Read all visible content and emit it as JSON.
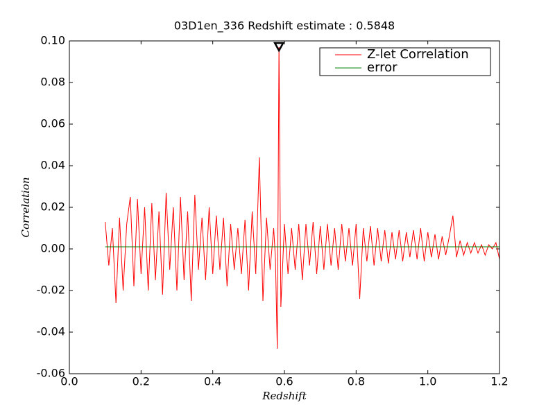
{
  "chart_data": {
    "type": "line",
    "title": "03D1en_336 Redshift estimate : 0.5848",
    "x_label": "Redshift",
    "y_label": "Correlation",
    "xlim": [
      0,
      1.2
    ],
    "ylim": [
      -0.06,
      0.1
    ],
    "xticks": [
      {
        "value": 0,
        "label": "0.0"
      },
      0.2,
      0.4,
      0.6,
      0.8,
      {
        "value": 1,
        "label": "1.0"
      },
      1.2
    ],
    "yticks": [
      -0.06,
      -0.04,
      -0.02,
      {
        "value": 0,
        "label": "0.00"
      },
      0.02,
      0.04,
      0.06,
      0.08,
      {
        "value": 0.1,
        "label": "0.10"
      }
    ],
    "legend": "upper right",
    "marker": {
      "x": 0.5848,
      "y": 0.097
    },
    "series": [
      {
        "name": "Z-let Correlation",
        "color": "#ff0000",
        "x": [
          0.1,
          0.11,
          0.12,
          0.13,
          0.14,
          0.15,
          0.16,
          0.17,
          0.18,
          0.19,
          0.2,
          0.21,
          0.22,
          0.23,
          0.24,
          0.25,
          0.26,
          0.27,
          0.28,
          0.29,
          0.3,
          0.31,
          0.32,
          0.33,
          0.34,
          0.35,
          0.36,
          0.37,
          0.38,
          0.39,
          0.4,
          0.41,
          0.42,
          0.43,
          0.44,
          0.45,
          0.46,
          0.47,
          0.48,
          0.49,
          0.5,
          0.51,
          0.52,
          0.53,
          0.54,
          0.55,
          0.56,
          0.57,
          0.575,
          0.58,
          0.5848,
          0.59,
          0.6,
          0.61,
          0.62,
          0.63,
          0.64,
          0.65,
          0.66,
          0.67,
          0.68,
          0.69,
          0.7,
          0.71,
          0.72,
          0.73,
          0.74,
          0.75,
          0.76,
          0.77,
          0.78,
          0.79,
          0.8,
          0.81,
          0.82,
          0.83,
          0.84,
          0.85,
          0.86,
          0.87,
          0.88,
          0.89,
          0.9,
          0.91,
          0.92,
          0.93,
          0.94,
          0.95,
          0.96,
          0.97,
          0.98,
          0.99,
          1.0,
          1.01,
          1.02,
          1.03,
          1.04,
          1.05,
          1.06,
          1.07,
          1.08,
          1.09,
          1.1,
          1.11,
          1.12,
          1.13,
          1.14,
          1.15,
          1.16,
          1.17,
          1.18,
          1.19,
          1.2
        ],
        "values": [
          0.013,
          -0.008,
          0.01,
          -0.026,
          0.015,
          -0.02,
          0.012,
          0.025,
          -0.018,
          0.024,
          -0.012,
          0.02,
          -0.02,
          0.022,
          -0.015,
          0.018,
          -0.022,
          0.027,
          -0.01,
          0.02,
          -0.02,
          0.025,
          -0.015,
          0.018,
          -0.025,
          0.026,
          -0.01,
          0.015,
          -0.015,
          0.02,
          -0.012,
          0.016,
          -0.01,
          0.015,
          -0.018,
          0.012,
          -0.01,
          0.01,
          -0.012,
          0.014,
          -0.02,
          0.018,
          -0.012,
          0.044,
          -0.025,
          0.015,
          -0.01,
          0.01,
          -0.005,
          -0.048,
          0.097,
          -0.028,
          0.012,
          -0.012,
          0.01,
          -0.01,
          0.012,
          -0.015,
          0.012,
          -0.008,
          0.013,
          -0.012,
          0.011,
          -0.01,
          0.012,
          -0.008,
          0.01,
          -0.01,
          0.012,
          -0.006,
          0.01,
          -0.008,
          0.012,
          -0.024,
          0.01,
          -0.006,
          0.011,
          -0.008,
          0.01,
          -0.006,
          0.009,
          -0.007,
          0.008,
          -0.005,
          0.009,
          -0.006,
          0.008,
          -0.004,
          0.009,
          -0.005,
          0.01,
          -0.006,
          0.008,
          -0.004,
          0.007,
          -0.005,
          0.006,
          -0.003,
          0.006,
          0.016,
          -0.004,
          0.004,
          -0.003,
          0.003,
          -0.002,
          0.003,
          -0.002,
          0.002,
          -0.003,
          0.002,
          0.0,
          0.003,
          -0.005
        ]
      },
      {
        "name": "error",
        "color": "#008000",
        "x": [
          0.1,
          1.2
        ],
        "values": [
          0.001,
          0.001
        ]
      }
    ]
  }
}
